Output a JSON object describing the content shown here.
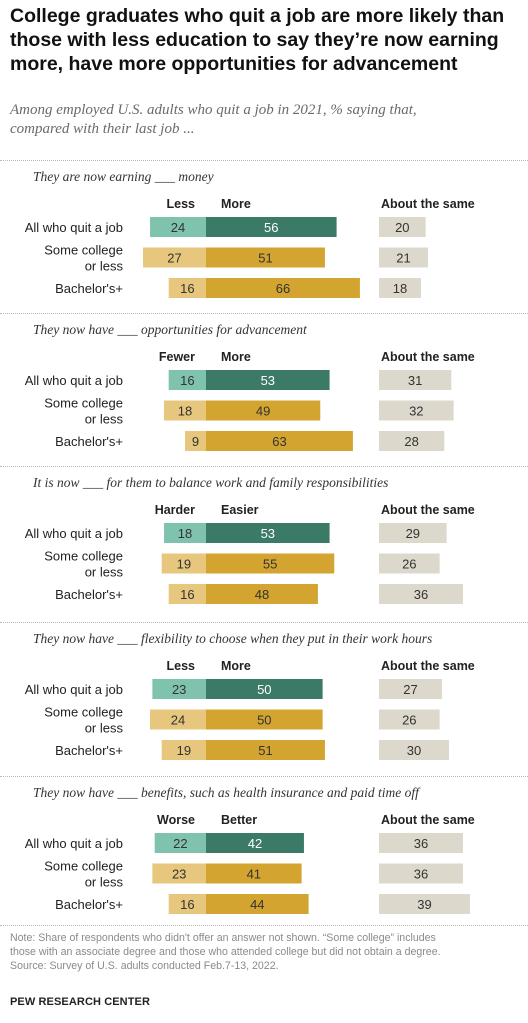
{
  "header": {
    "title_lines": [
      "College graduates who quit a job are more likely than",
      "those with less education to say they’re now earning",
      "more, have more opportunities for advancement"
    ],
    "subtitle_lines": [
      "Among employed U.S. adults who quit a job in 2021, % saying that,",
      "compared with their last job ..."
    ]
  },
  "colors": {
    "neg_teal": "#7fc3ae",
    "pos_teal": "#3a7a66",
    "neg_gold": "#e6c77d",
    "pos_gold": "#d3a42f",
    "same": "#dcd8cc",
    "text_on_dark": "#ffffff",
    "text_on_light": "#333333"
  },
  "chart_data": [
    {
      "type": "bar",
      "title": "They are now earning ___ money",
      "neg_label": "Less",
      "pos_label": "More",
      "same_label": "About the same",
      "categories": [
        "All who quit a job",
        "Some college or less",
        "Bachelor's+"
      ],
      "series": [
        {
          "name": "Less",
          "values": [
            24,
            27,
            16
          ]
        },
        {
          "name": "More",
          "values": [
            56,
            51,
            66
          ]
        },
        {
          "name": "About the same",
          "values": [
            20,
            21,
            18
          ]
        }
      ]
    },
    {
      "type": "bar",
      "title": "They now have ___ opportunities for advancement",
      "neg_label": "Fewer",
      "pos_label": "More",
      "same_label": "About the same",
      "categories": [
        "All who quit a job",
        "Some college or less",
        "Bachelor's+"
      ],
      "series": [
        {
          "name": "Fewer",
          "values": [
            16,
            18,
            9
          ]
        },
        {
          "name": "More",
          "values": [
            53,
            49,
            63
          ]
        },
        {
          "name": "About the same",
          "values": [
            31,
            32,
            28
          ]
        }
      ]
    },
    {
      "type": "bar",
      "title": "It is now ___ for them to balance work and family responsibilities",
      "neg_label": "Harder",
      "pos_label": "Easier",
      "same_label": "About the same",
      "categories": [
        "All who quit a job",
        "Some college or less",
        "Bachelor's+"
      ],
      "series": [
        {
          "name": "Harder",
          "values": [
            18,
            19,
            16
          ]
        },
        {
          "name": "Easier",
          "values": [
            53,
            55,
            48
          ]
        },
        {
          "name": "About the same",
          "values": [
            29,
            26,
            36
          ]
        }
      ]
    },
    {
      "type": "bar",
      "title": "They now have ___ flexibility to choose when they put in their work hours",
      "neg_label": "Less",
      "pos_label": "More",
      "same_label": "About the same",
      "categories": [
        "All who quit a job",
        "Some college or less",
        "Bachelor's+"
      ],
      "series": [
        {
          "name": "Less",
          "values": [
            23,
            24,
            19
          ]
        },
        {
          "name": "More",
          "values": [
            50,
            50,
            51
          ]
        },
        {
          "name": "About the same",
          "values": [
            27,
            26,
            30
          ]
        }
      ]
    },
    {
      "type": "bar",
      "title": "They now have ___ benefits, such as health insurance and paid time off",
      "neg_label": "Worse",
      "pos_label": "Better",
      "same_label": "About the same",
      "categories": [
        "All who quit a job",
        "Some college or less",
        "Bachelor's+"
      ],
      "series": [
        {
          "name": "Worse",
          "values": [
            22,
            23,
            16
          ]
        },
        {
          "name": "Better",
          "values": [
            42,
            41,
            44
          ]
        },
        {
          "name": "About the same",
          "values": [
            36,
            36,
            39
          ]
        }
      ]
    }
  ],
  "note_lines": [
    "Note: Share of respondents who didn't offer an answer not shown. “Some college” includes",
    "those with an associate degree and those who attended college but did not obtain a degree.",
    "Source: Survey of U.S. adults conducted Feb.7-13, 2022."
  ],
  "footer": "PEW RESEARCH CENTER"
}
